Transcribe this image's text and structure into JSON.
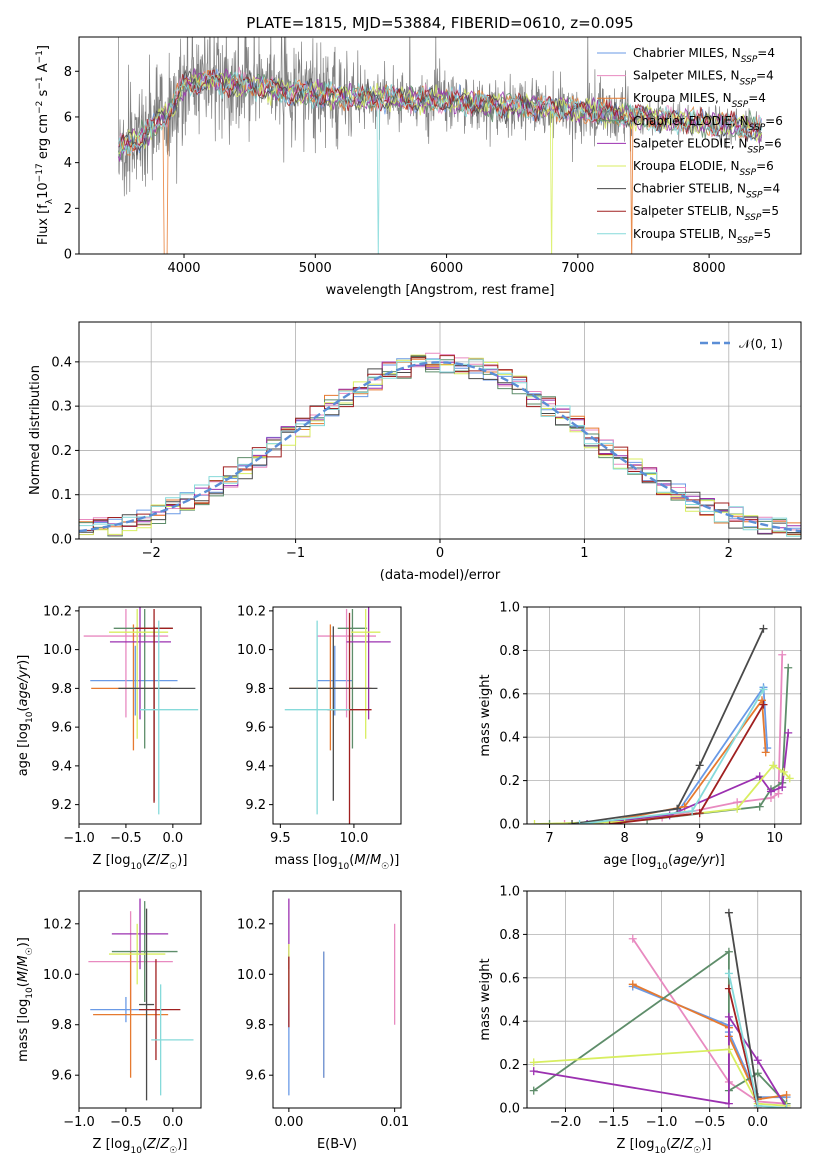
{
  "colors": {
    "c0": "#6a9ae6",
    "c1": "#e88ac0",
    "c2": "#e67a30",
    "c3": "#5e8d6a",
    "c4": "#9b30b0",
    "c5": "#d8ee60",
    "c6": "#4a4a4a",
    "c7": "#a02020",
    "c8": "#86dada"
  },
  "chart_data": [
    {
      "id": "spectrum",
      "type": "line",
      "title": "PLATE=1815, MJD=53884, FIBERID=0610, z=0.095",
      "xlabel": "wavelength [Angstrom, rest frame]",
      "ylabel": "Flux [f_λ 10^-17 erg cm^-2 s^-1 A^-1]",
      "xlim": [
        3200,
        8700
      ],
      "ylim": [
        0,
        9.5
      ],
      "xticks": [
        4000,
        5000,
        6000,
        7000,
        8000
      ],
      "yticks": [
        0,
        2,
        4,
        6,
        8
      ],
      "continuum": {
        "x": [
          3500,
          3700,
          3900,
          4000,
          4200,
          4400,
          4600,
          4800,
          5000,
          5200,
          5500,
          6000,
          6500,
          7000,
          7500,
          7800,
          8200,
          8400
        ],
        "y": [
          4.6,
          5.2,
          6.3,
          7.4,
          7.6,
          7.4,
          7.3,
          7.1,
          7.0,
          6.9,
          6.8,
          6.7,
          6.5,
          6.3,
          6.0,
          5.8,
          5.6,
          5.4
        ]
      },
      "legend": [
        {
          "label": "Chabrier MILES, N",
          "n": "4"
        },
        {
          "label": "Salpeter MILES, N",
          "n": "4"
        },
        {
          "label": "Kroupa MILES, N",
          "n": "4"
        },
        {
          "label": "Chabrier ELODIE, N",
          "n": "6"
        },
        {
          "label": "Salpeter ELODIE, N",
          "n": "6"
        },
        {
          "label": "Kroupa ELODIE, N",
          "n": "6"
        },
        {
          "label": "Chabrier STELIB, N",
          "n": "4"
        },
        {
          "label": "Salpeter STELIB, N",
          "n": "5"
        },
        {
          "label": "Kroupa STELIB, N",
          "n": "5"
        }
      ],
      "legend_sub": "SSP",
      "legend_placement": "upper right"
    },
    {
      "id": "residuals",
      "type": "histogram",
      "xlabel": "(data-model)/error",
      "ylabel": "Normed distribution",
      "xlim": [
        -2.5,
        2.5
      ],
      "ylim": [
        0,
        0.49
      ],
      "xticks": [
        -2,
        -1,
        0,
        1,
        2
      ],
      "yticks": [
        0.0,
        0.1,
        0.2,
        0.3,
        0.4
      ],
      "grid": true,
      "bin_width": 0.1,
      "bin_start": -2.5,
      "reference_label": "𝒩(0, 1)",
      "legend_placement": "upper right"
    },
    {
      "id": "age_vs_Z",
      "type": "errorbar",
      "xlabel": "Z [log10(Z/Z☉)]",
      "ylabel": "age  [log10(age/yr)]",
      "xlim": [
        -1.0,
        0.3
      ],
      "ylim": [
        9.1,
        10.22
      ],
      "xticks": [
        -1.0,
        -0.5,
        0.0
      ],
      "yticks": [
        9.2,
        9.4,
        9.6,
        9.8,
        10.0,
        10.2
      ],
      "points": [
        {
          "c": "c0",
          "x": -0.4,
          "xe": [
            0.48,
            0.45
          ],
          "y": 9.84,
          "ye": [
            0.18,
            0.18
          ]
        },
        {
          "c": "c1",
          "x": -0.5,
          "xe": [
            0.45,
            0.45
          ],
          "y": 10.07,
          "ye": [
            0.42,
            0.14
          ]
        },
        {
          "c": "c2",
          "x": -0.42,
          "xe": [
            0.45,
            0.4
          ],
          "y": 9.8,
          "ye": [
            0.32,
            0.33
          ]
        },
        {
          "c": "c3",
          "x": -0.3,
          "xe": [
            0.33,
            0.3
          ],
          "y": 10.11,
          "ye": [
            0.62,
            0.1
          ]
        },
        {
          "c": "c4",
          "x": -0.35,
          "xe": [
            0.32,
            0.33
          ],
          "y": 10.04,
          "ye": [
            0.4,
            0.18
          ]
        },
        {
          "c": "c5",
          "x": -0.38,
          "xe": [
            0.3,
            0.33
          ],
          "y": 10.09,
          "ye": [
            0.55,
            0.12
          ]
        },
        {
          "c": "c6",
          "x": -0.2,
          "xe": [
            0.38,
            0.44
          ],
          "y": 9.8,
          "ye": [
            0.58,
            0.32
          ]
        },
        {
          "c": "c7",
          "x": -0.2,
          "xe": [
            0.2,
            0.2
          ],
          "y": 10.11,
          "ye": [
            0.9,
            0.1
          ]
        },
        {
          "c": "c8",
          "x": -0.15,
          "xe": [
            0.2,
            0.42
          ],
          "y": 9.69,
          "ye": [
            0.54,
            0.46
          ]
        }
      ]
    },
    {
      "id": "age_vs_mass",
      "type": "errorbar",
      "xlabel": "mass [log10(M/M☉)]",
      "ylabel": "",
      "xlim": [
        9.45,
        10.32
      ],
      "ylim": [
        9.1,
        10.22
      ],
      "xticks": [
        9.5,
        10.0
      ],
      "yticks": [
        9.2,
        9.4,
        9.6,
        9.8,
        10.0,
        10.2
      ],
      "points": [
        {
          "c": "c0",
          "x": 9.87,
          "xe": [
            0.12,
            0.12
          ],
          "y": 9.84,
          "ye": [
            0.18,
            0.18
          ]
        },
        {
          "c": "c1",
          "x": 9.95,
          "xe": [
            0.2,
            0.2
          ],
          "y": 10.07,
          "ye": [
            0.42,
            0.14
          ]
        },
        {
          "c": "c2",
          "x": 9.84,
          "xe": [
            0.28,
            0.28
          ],
          "y": 9.8,
          "ye": [
            0.32,
            0.33
          ]
        },
        {
          "c": "c3",
          "x": 9.99,
          "xe": [
            0.1,
            0.1
          ],
          "y": 10.11,
          "ye": [
            0.62,
            0.1
          ]
        },
        {
          "c": "c4",
          "x": 10.1,
          "xe": [
            0.15,
            0.15
          ],
          "y": 10.04,
          "ye": [
            0.4,
            0.18
          ]
        },
        {
          "c": "c5",
          "x": 10.08,
          "xe": [
            0.1,
            0.1
          ],
          "y": 10.09,
          "ye": [
            0.55,
            0.12
          ]
        },
        {
          "c": "c6",
          "x": 9.86,
          "xe": [
            0.3,
            0.3
          ],
          "y": 9.8,
          "ye": [
            0.58,
            0.32
          ]
        },
        {
          "c": "c7",
          "x": 9.97,
          "xe": [
            0.15,
            0.15
          ],
          "y": 9.69,
          "ye": [
            0.9,
            0.5
          ]
        },
        {
          "c": "c8",
          "x": 9.75,
          "xe": [
            0.22,
            0.22
          ],
          "y": 9.69,
          "ye": [
            0.54,
            0.46
          ]
        }
      ]
    },
    {
      "id": "weight_vs_age",
      "type": "line",
      "xlabel": "age  [log10(age/yr)]",
      "ylabel": "mass weight",
      "xlim": [
        6.7,
        10.35
      ],
      "ylim": [
        0,
        1.0
      ],
      "xticks": [
        7,
        8,
        9,
        10
      ],
      "yticks": [
        0.0,
        0.2,
        0.4,
        0.6,
        0.8,
        1.0
      ],
      "grid": true,
      "series": [
        {
          "c": "c0",
          "x": [
            7.5,
            8.7,
            9.85,
            9.9
          ],
          "y": [
            0.0,
            0.05,
            0.63,
            0.35
          ]
        },
        {
          "c": "c1",
          "x": [
            7.2,
            8.5,
            9.5,
            9.95,
            10.05,
            10.1
          ],
          "y": [
            0.0,
            0.03,
            0.1,
            0.12,
            0.14,
            0.78
          ]
        },
        {
          "c": "c2",
          "x": [
            7.6,
            8.8,
            9.83,
            9.88
          ],
          "y": [
            0.0,
            0.08,
            0.57,
            0.33
          ]
        },
        {
          "c": "c3",
          "x": [
            7.0,
            8.3,
            9.8,
            9.95,
            10.1,
            10.18
          ],
          "y": [
            0.0,
            0.02,
            0.08,
            0.16,
            0.19,
            0.72
          ]
        },
        {
          "c": "c4",
          "x": [
            7.5,
            8.6,
            9.8,
            9.95,
            10.1,
            10.18
          ],
          "y": [
            0.0,
            0.04,
            0.22,
            0.15,
            0.17,
            0.42
          ]
        },
        {
          "c": "c5",
          "x": [
            6.8,
            8.0,
            9.5,
            9.98,
            10.12,
            10.2
          ],
          "y": [
            0.0,
            0.01,
            0.07,
            0.27,
            0.24,
            0.21
          ]
        },
        {
          "c": "c6",
          "x": [
            7.3,
            8.7,
            9.0,
            9.85
          ],
          "y": [
            0.0,
            0.07,
            0.27,
            0.9
          ]
        },
        {
          "c": "c7",
          "x": [
            7.8,
            9.0,
            9.85
          ],
          "y": [
            0.0,
            0.05,
            0.55
          ]
        },
        {
          "c": "c8",
          "x": [
            7.4,
            8.9,
            9.85
          ],
          "y": [
            0.0,
            0.06,
            0.62
          ]
        }
      ]
    },
    {
      "id": "mass_vs_Z",
      "type": "errorbar",
      "xlabel": "Z [log10(Z/Z☉)]",
      "ylabel": "mass [log10(M/M☉)]",
      "xlim": [
        -1.0,
        0.3
      ],
      "ylim": [
        9.47,
        10.33
      ],
      "xticks": [
        -1.0,
        -0.5,
        0.0
      ],
      "yticks": [
        9.6,
        9.8,
        10.0,
        10.2
      ],
      "points": [
        {
          "c": "c0",
          "x": -0.5,
          "xe": [
            0.38,
            0.4
          ],
          "y": 9.86,
          "ye": [
            0.05,
            0.05
          ]
        },
        {
          "c": "c1",
          "x": -0.45,
          "xe": [
            0.45,
            0.45
          ],
          "y": 10.05,
          "ye": [
            0.2,
            0.2
          ]
        },
        {
          "c": "c2",
          "x": -0.45,
          "xe": [
            0.4,
            0.4
          ],
          "y": 9.84,
          "ye": [
            0.25,
            0.25
          ]
        },
        {
          "c": "c3",
          "x": -0.3,
          "xe": [
            0.35,
            0.35
          ],
          "y": 10.09,
          "ye": [
            0.2,
            0.2
          ]
        },
        {
          "c": "c4",
          "x": -0.35,
          "xe": [
            0.3,
            0.3
          ],
          "y": 10.16,
          "ye": [
            0.14,
            0.14
          ]
        },
        {
          "c": "c5",
          "x": -0.38,
          "xe": [
            0.3,
            0.3
          ],
          "y": 10.08,
          "ye": [
            0.12,
            0.12
          ]
        },
        {
          "c": "c6",
          "x": -0.28,
          "xe": [
            0.08,
            0.08
          ],
          "y": 9.88,
          "ye": [
            0.38,
            0.38
          ]
        },
        {
          "c": "c7",
          "x": -0.18,
          "xe": [
            0.18,
            0.26
          ],
          "y": 9.86,
          "ye": [
            0.2,
            0.2
          ]
        },
        {
          "c": "c8",
          "x": -0.13,
          "xe": [
            0.1,
            0.35
          ],
          "y": 9.74,
          "ye": [
            0.22,
            0.22
          ]
        }
      ]
    },
    {
      "id": "mass_vs_EBV",
      "type": "errorbar",
      "xlabel": "E(B-V)",
      "ylabel": "",
      "xlim": [
        -0.0015,
        0.0106
      ],
      "ylim": [
        9.47,
        10.33
      ],
      "xticks": [
        0.0,
        0.01
      ],
      "yticks": [
        9.6,
        9.8,
        10.0,
        10.2
      ],
      "points": [
        {
          "c": "c0",
          "x": 0.0,
          "y": 9.8,
          "ye": [
            0.28,
            0.28
          ]
        },
        {
          "c": "c4",
          "x": 0.0,
          "y": 10.16,
          "ye": [
            0.14,
            0.14
          ]
        },
        {
          "c": "c5",
          "x": 0.0,
          "y": 10.0,
          "ye": [
            0.12,
            0.12
          ]
        },
        {
          "c": "c7",
          "x": 0.0,
          "y": 9.93,
          "ye": [
            0.14,
            0.14
          ]
        },
        {
          "c": "c2",
          "x": 0.0033,
          "y": 9.84,
          "ye": [
            0.25,
            0.25
          ]
        },
        {
          "c": "c0",
          "x": 0.0033,
          "y": 9.84,
          "ye": [
            0.25,
            0.25
          ]
        },
        {
          "c": "c1",
          "x": 0.01,
          "y": 10.0,
          "ye": [
            0.2,
            0.2
          ]
        }
      ]
    },
    {
      "id": "weight_vs_Z",
      "type": "line",
      "xlabel": "Z [log10(Z/Z☉)]",
      "ylabel": "mass weight",
      "xlim": [
        -2.4,
        0.45
      ],
      "ylim": [
        0,
        1.0
      ],
      "xticks": [
        -2.0,
        -1.5,
        -1.0,
        -0.5,
        0.0
      ],
      "yticks": [
        0.0,
        0.2,
        0.4,
        0.6,
        0.8,
        1.0
      ],
      "grid": true,
      "series": [
        {
          "c": "c0",
          "x": [
            -1.3,
            -0.3,
            -0.3,
            0.0,
            0.3
          ],
          "y": [
            0.56,
            0.38,
            0.35,
            0.05,
            0.05
          ]
        },
        {
          "c": "c1",
          "x": [
            -1.3,
            -0.3,
            0.0,
            0.3
          ],
          "y": [
            0.78,
            0.12,
            0.03,
            0.02
          ]
        },
        {
          "c": "c2",
          "x": [
            -1.3,
            -0.3,
            -0.3,
            0.0,
            0.3
          ],
          "y": [
            0.57,
            0.37,
            0.33,
            0.04,
            0.06
          ]
        },
        {
          "c": "c3",
          "x": [
            -2.33,
            -0.3,
            -0.3,
            0.0,
            0.3
          ],
          "y": [
            0.08,
            0.72,
            0.08,
            0.16,
            0.02
          ]
        },
        {
          "c": "c4",
          "x": [
            -2.33,
            -0.3,
            -0.3,
            0.0,
            0.3
          ],
          "y": [
            0.17,
            0.02,
            0.42,
            0.22,
            0.0
          ]
        },
        {
          "c": "c5",
          "x": [
            -2.33,
            -0.3,
            0.0,
            0.3
          ],
          "y": [
            0.21,
            0.27,
            0.02,
            0.01
          ]
        },
        {
          "c": "c6",
          "x": [
            -0.3,
            0.0
          ],
          "y": [
            0.9,
            0.05
          ]
        },
        {
          "c": "c7",
          "x": [
            -0.3,
            0.0
          ],
          "y": [
            0.55,
            0.0
          ]
        },
        {
          "c": "c8",
          "x": [
            -0.3,
            0.0,
            0.3
          ],
          "y": [
            0.62,
            0.01,
            0.0
          ]
        }
      ]
    }
  ]
}
